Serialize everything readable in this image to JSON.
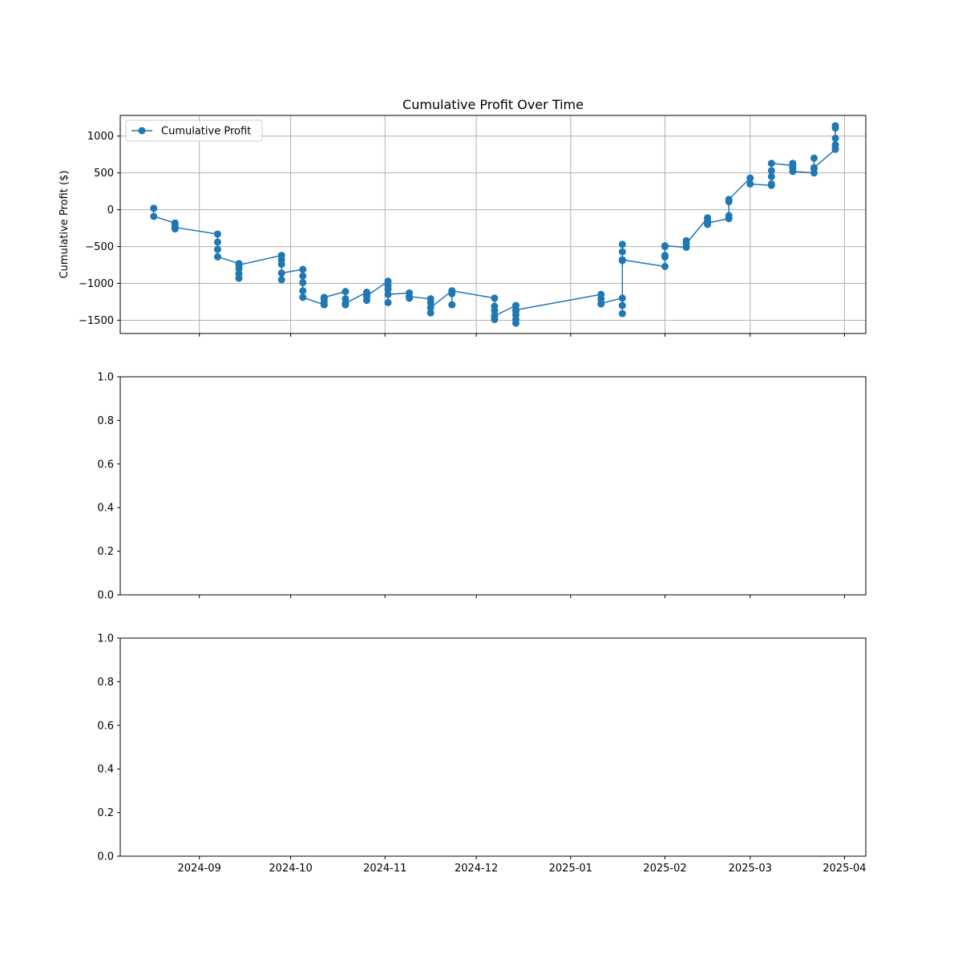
{
  "colors": {
    "series": "#1f77b4",
    "grid": "#b0b0b0",
    "axis": "#000000",
    "background": "#ffffff"
  },
  "chart_data": [
    {
      "type": "line",
      "title": "Cumulative Profit Over Time",
      "xlabel": "",
      "ylabel": "Cumulative Profit ($)",
      "grid": true,
      "legend": {
        "position": "top-left",
        "entries": [
          "Cumulative Profit"
        ]
      },
      "ylim": [
        -1680,
        1280
      ],
      "y_ticks": [
        -1500,
        -1000,
        -500,
        0,
        500,
        1000
      ],
      "x_tick_labels": [
        "2024-09",
        "2024-10",
        "2024-11",
        "2024-12",
        "2025-01",
        "2025-02",
        "2025-03",
        "2025-04"
      ],
      "x_tick_dates": [
        "2024-09-01",
        "2024-10-01",
        "2024-11-01",
        "2024-12-01",
        "2025-01-01",
        "2025-02-01",
        "2025-03-01",
        "2025-04-01"
      ],
      "xlim": [
        "2024-08-06",
        "2025-04-08"
      ],
      "show_x_tick_labels": false,
      "series": [
        {
          "name": "Cumulative Profit",
          "marker": "circle",
          "points": [
            [
              "2024-08-17",
              20
            ],
            [
              "2024-08-17",
              -90
            ],
            [
              "2024-08-24",
              -180
            ],
            [
              "2024-08-24",
              -210
            ],
            [
              "2024-08-24",
              -260
            ],
            [
              "2024-08-24",
              -240
            ],
            [
              "2024-09-07",
              -330
            ],
            [
              "2024-09-07",
              -440
            ],
            [
              "2024-09-07",
              -540
            ],
            [
              "2024-09-07",
              -640
            ],
            [
              "2024-09-14",
              -730
            ],
            [
              "2024-09-14",
              -800
            ],
            [
              "2024-09-14",
              -870
            ],
            [
              "2024-09-14",
              -930
            ],
            [
              "2024-09-14",
              -750
            ],
            [
              "2024-09-28",
              -620
            ],
            [
              "2024-09-28",
              -680
            ],
            [
              "2024-09-28",
              -740
            ],
            [
              "2024-09-28",
              -950
            ],
            [
              "2024-09-28",
              -860
            ],
            [
              "2024-10-05",
              -810
            ],
            [
              "2024-10-05",
              -900
            ],
            [
              "2024-10-05",
              -990
            ],
            [
              "2024-10-05",
              -1100
            ],
            [
              "2024-10-05",
              -1190
            ],
            [
              "2024-10-12",
              -1290
            ],
            [
              "2024-10-12",
              -1250
            ],
            [
              "2024-10-12",
              -1210
            ],
            [
              "2024-10-12",
              -1190
            ],
            [
              "2024-10-19",
              -1110
            ],
            [
              "2024-10-19",
              -1210
            ],
            [
              "2024-10-19",
              -1290
            ],
            [
              "2024-10-19",
              -1270
            ],
            [
              "2024-10-26",
              -1120
            ],
            [
              "2024-10-26",
              -1180
            ],
            [
              "2024-10-26",
              -1230
            ],
            [
              "2024-10-26",
              -1170
            ],
            [
              "2024-11-02",
              -970
            ],
            [
              "2024-11-02",
              -1030
            ],
            [
              "2024-11-02",
              -1080
            ],
            [
              "2024-11-02",
              -1260
            ],
            [
              "2024-11-02",
              -1150
            ],
            [
              "2024-11-09",
              -1130
            ],
            [
              "2024-11-09",
              -1200
            ],
            [
              "2024-11-09",
              -1180
            ],
            [
              "2024-11-16",
              -1210
            ],
            [
              "2024-11-16",
              -1260
            ],
            [
              "2024-11-16",
              -1400
            ],
            [
              "2024-11-16",
              -1330
            ],
            [
              "2024-11-23",
              -1100
            ],
            [
              "2024-11-23",
              -1140
            ],
            [
              "2024-11-23",
              -1290
            ],
            [
              "2024-11-23",
              -1100
            ],
            [
              "2024-12-07",
              -1200
            ],
            [
              "2024-12-07",
              -1310
            ],
            [
              "2024-12-07",
              -1370
            ],
            [
              "2024-12-07",
              -1440
            ],
            [
              "2024-12-07",
              -1490
            ],
            [
              "2024-12-07",
              -1440
            ],
            [
              "2024-12-14",
              -1300
            ],
            [
              "2024-12-14",
              -1380
            ],
            [
              "2024-12-14",
              -1430
            ],
            [
              "2024-12-14",
              -1490
            ],
            [
              "2024-12-14",
              -1540
            ],
            [
              "2024-12-14",
              -1360
            ],
            [
              "2025-01-11",
              -1150
            ],
            [
              "2025-01-11",
              -1210
            ],
            [
              "2025-01-11",
              -1280
            ],
            [
              "2025-01-11",
              -1270
            ],
            [
              "2025-01-18",
              -1200
            ],
            [
              "2025-01-18",
              -1300
            ],
            [
              "2025-01-18",
              -1410
            ],
            [
              "2025-01-18",
              -470
            ],
            [
              "2025-01-18",
              -570
            ],
            [
              "2025-01-18",
              -690
            ],
            [
              "2025-01-18",
              -680
            ],
            [
              "2025-02-01",
              -770
            ],
            [
              "2025-02-01",
              -640
            ],
            [
              "2025-02-01",
              -620
            ],
            [
              "2025-02-01",
              -500
            ],
            [
              "2025-02-01",
              -490
            ],
            [
              "2025-02-08",
              -510
            ],
            [
              "2025-02-08",
              -420
            ],
            [
              "2025-02-08",
              -460
            ],
            [
              "2025-02-15",
              -110
            ],
            [
              "2025-02-15",
              -150
            ],
            [
              "2025-02-15",
              -200
            ],
            [
              "2025-02-15",
              -180
            ],
            [
              "2025-02-22",
              -120
            ],
            [
              "2025-02-22",
              -80
            ],
            [
              "2025-02-22",
              110
            ],
            [
              "2025-02-22",
              140
            ],
            [
              "2025-03-01",
              430
            ],
            [
              "2025-03-01",
              350
            ],
            [
              "2025-03-08",
              330
            ],
            [
              "2025-03-08",
              350
            ],
            [
              "2025-03-08",
              450
            ],
            [
              "2025-03-08",
              530
            ],
            [
              "2025-03-08",
              630
            ],
            [
              "2025-03-15",
              600
            ],
            [
              "2025-03-15",
              630
            ],
            [
              "2025-03-15",
              570
            ],
            [
              "2025-03-15",
              520
            ],
            [
              "2025-03-22",
              500
            ],
            [
              "2025-03-22",
              560
            ],
            [
              "2025-03-22",
              700
            ],
            [
              "2025-03-22",
              570
            ],
            [
              "2025-03-29",
              820
            ],
            [
              "2025-03-29",
              880
            ],
            [
              "2025-03-29",
              970
            ],
            [
              "2025-03-29",
              1110
            ],
            [
              "2025-03-29",
              1140
            ],
            [
              "2025-03-29",
              830
            ]
          ]
        }
      ]
    },
    {
      "type": "line",
      "title": "",
      "xlabel": "",
      "ylabel": "",
      "grid": false,
      "ylim": [
        0,
        1
      ],
      "y_ticks": [
        0.0,
        0.2,
        0.4,
        0.6,
        0.8,
        1.0
      ],
      "x_tick_labels": [
        "2024-09",
        "2024-10",
        "2024-11",
        "2024-12",
        "2025-01",
        "2025-02",
        "2025-03",
        "2025-04"
      ],
      "x_tick_dates": [
        "2024-09-01",
        "2024-10-01",
        "2024-11-01",
        "2024-12-01",
        "2025-01-01",
        "2025-02-01",
        "2025-03-01",
        "2025-04-01"
      ],
      "xlim": [
        "2024-08-06",
        "2025-04-08"
      ],
      "show_x_tick_labels": false,
      "series": []
    },
    {
      "type": "line",
      "title": "",
      "xlabel": "",
      "ylabel": "",
      "grid": false,
      "ylim": [
        0,
        1
      ],
      "y_ticks": [
        0.0,
        0.2,
        0.4,
        0.6,
        0.8,
        1.0
      ],
      "x_tick_labels": [
        "2024-09",
        "2024-10",
        "2024-11",
        "2024-12",
        "2025-01",
        "2025-02",
        "2025-03",
        "2025-04"
      ],
      "x_tick_dates": [
        "2024-09-01",
        "2024-10-01",
        "2024-11-01",
        "2024-12-01",
        "2025-01-01",
        "2025-02-01",
        "2025-03-01",
        "2025-04-01"
      ],
      "xlim": [
        "2024-08-06",
        "2025-04-08"
      ],
      "show_x_tick_labels": true,
      "series": []
    }
  ]
}
